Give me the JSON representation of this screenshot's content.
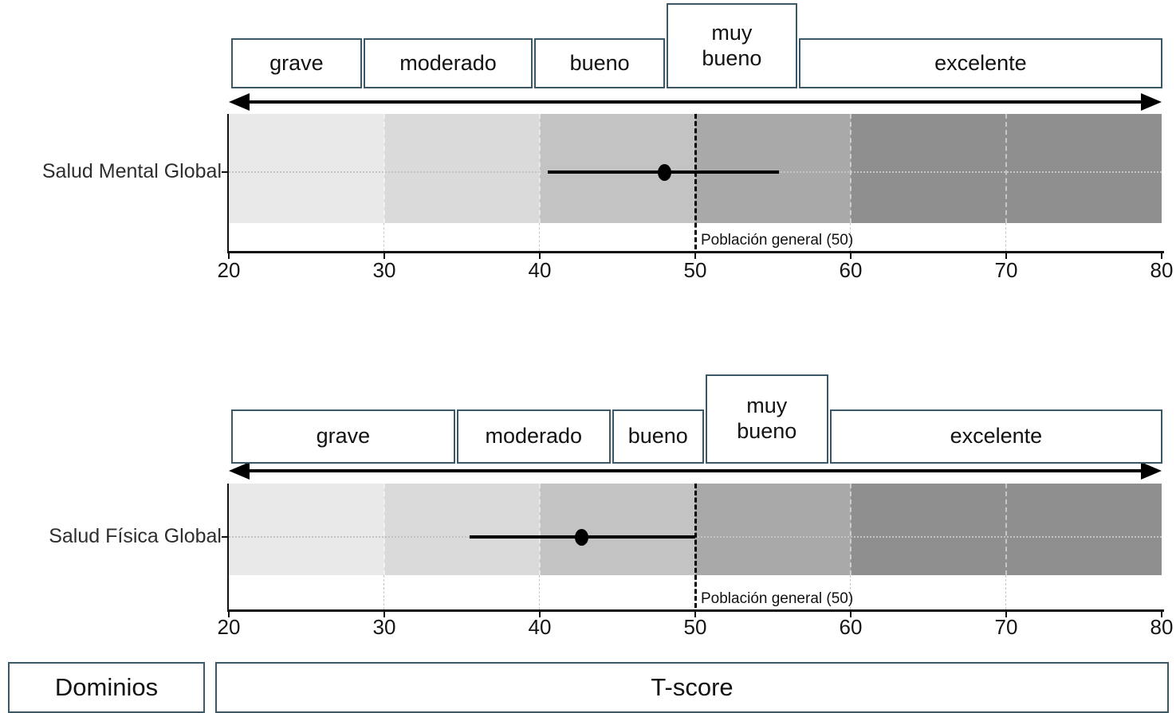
{
  "colors": {
    "marker": "#000000",
    "band_shades": [
      "#e9e9e9",
      "#dadada",
      "#c3c3c3",
      "#a9a9a9",
      "#8f8f8f"
    ],
    "box_border": "#3b5866",
    "text": "#121212",
    "grid_light": "#c9c9c9"
  },
  "footer": {
    "dominios_label": "Dominios",
    "tscore_label": "T-score"
  },
  "chart_data": [
    {
      "type": "scatter",
      "row_label": "Salud Mental Global",
      "xlabel": "T-score",
      "xlim": [
        20,
        80
      ],
      "x_ticks": [
        20,
        30,
        40,
        50,
        60,
        70,
        80
      ],
      "point": 48,
      "ci": [
        40.5,
        55.4
      ],
      "reference_line": {
        "value": 50,
        "label": "Población general (50)"
      },
      "categories": [
        {
          "label": "grave",
          "from": 20,
          "to": 28.5
        },
        {
          "label": "moderado",
          "from": 28.5,
          "to": 39.5
        },
        {
          "label": "bueno",
          "from": 39.5,
          "to": 48
        },
        {
          "label": "muy bueno",
          "from": 48,
          "to": 56.5,
          "two_line": true
        },
        {
          "label": "excelente",
          "from": 56.5,
          "to": 80
        }
      ],
      "shading": [
        {
          "from": 20,
          "to": 30,
          "color": "#e9e9e9"
        },
        {
          "from": 30,
          "to": 40,
          "color": "#dadada"
        },
        {
          "from": 40,
          "to": 50,
          "color": "#c3c3c3"
        },
        {
          "from": 50,
          "to": 60,
          "color": "#a9a9a9"
        },
        {
          "from": 60,
          "to": 80,
          "color": "#8f8f8f"
        }
      ]
    },
    {
      "type": "scatter",
      "row_label": "Salud Física Global",
      "xlabel": "T-score",
      "xlim": [
        20,
        80
      ],
      "x_ticks": [
        20,
        30,
        40,
        50,
        60,
        70,
        80
      ],
      "point": 42.7,
      "ci": [
        35.5,
        50
      ],
      "reference_line": {
        "value": 50,
        "label": "Población general (50)"
      },
      "categories": [
        {
          "label": "grave",
          "from": 20,
          "to": 34.5
        },
        {
          "label": "moderado",
          "from": 34.5,
          "to": 44.5
        },
        {
          "label": "bueno",
          "from": 44.5,
          "to": 50.5
        },
        {
          "label": "muy bueno",
          "from": 50.5,
          "to": 58.5,
          "two_line": true
        },
        {
          "label": "excelente",
          "from": 58.5,
          "to": 80
        }
      ],
      "shading": [
        {
          "from": 20,
          "to": 30,
          "color": "#e9e9e9"
        },
        {
          "from": 30,
          "to": 40,
          "color": "#dadada"
        },
        {
          "from": 40,
          "to": 50,
          "color": "#c3c3c3"
        },
        {
          "from": 50,
          "to": 60,
          "color": "#a9a9a9"
        },
        {
          "from": 60,
          "to": 80,
          "color": "#8f8f8f"
        }
      ]
    }
  ]
}
